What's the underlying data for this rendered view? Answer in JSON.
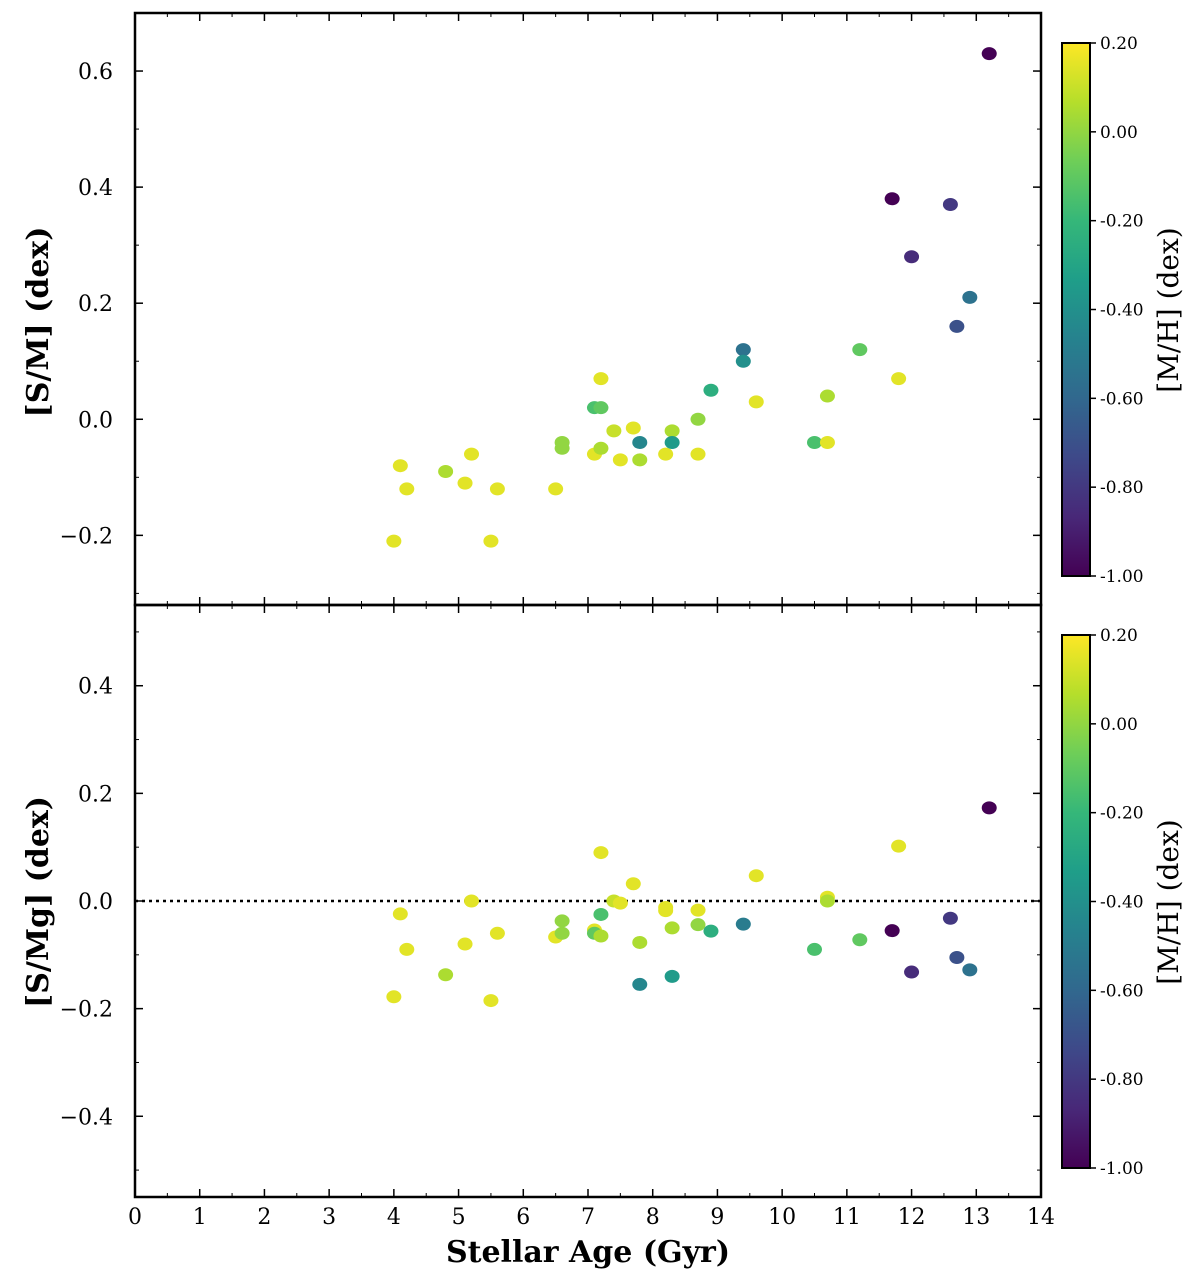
{
  "colors": {
    "viridis": [
      "#440154",
      "#482878",
      "#3e4989",
      "#31688e",
      "#26828e",
      "#1f9e89",
      "#35b779",
      "#6ece58",
      "#b5de2b",
      "#fde725"
    ],
    "zero_line": "#000000"
  },
  "chart_data": [
    {
      "type": "scatter",
      "panel": "top",
      "xlabel": "Stellar Age (Gyr)",
      "ylabel": "[S/M] (dex)",
      "xlim": [
        0,
        14
      ],
      "ylim": [
        -0.32,
        0.7
      ],
      "xticks": [
        0,
        1,
        2,
        3,
        4,
        5,
        6,
        7,
        8,
        9,
        10,
        11,
        12,
        13,
        14
      ],
      "xtick_labels": [
        "0",
        "1",
        "2",
        "3",
        "4",
        "5",
        "6",
        "7",
        "8",
        "9",
        "10",
        "11",
        "12",
        "13",
        "14"
      ],
      "yticks": [
        -0.2,
        0.0,
        0.2,
        0.4,
        0.6
      ],
      "ytick_labels": [
        "−0.2",
        "0.0",
        "0.2",
        "0.4",
        "0.6"
      ],
      "colorbar": {
        "label": "[M/H] (dex)",
        "range": [
          -1.0,
          0.2
        ],
        "ticks": [
          0.2,
          0.0,
          -0.2,
          -0.4,
          -0.6,
          -0.8,
          -1.0
        ],
        "tick_labels": [
          "0.20",
          "0.00",
          "-0.20",
          "-0.40",
          "-0.60",
          "-0.80",
          "-1.00"
        ]
      },
      "reference_line": null,
      "points": [
        {
          "x": 4.0,
          "y": -0.21,
          "c": 0.15
        },
        {
          "x": 4.1,
          "y": -0.08,
          "c": 0.15
        },
        {
          "x": 4.2,
          "y": -0.12,
          "c": 0.15
        },
        {
          "x": 4.8,
          "y": -0.09,
          "c": 0.05
        },
        {
          "x": 5.1,
          "y": -0.11,
          "c": 0.15
        },
        {
          "x": 5.2,
          "y": -0.06,
          "c": 0.15
        },
        {
          "x": 5.5,
          "y": -0.21,
          "c": 0.15
        },
        {
          "x": 5.6,
          "y": -0.12,
          "c": 0.15
        },
        {
          "x": 6.5,
          "y": -0.12,
          "c": 0.15
        },
        {
          "x": 6.6,
          "y": -0.04,
          "c": 0.0
        },
        {
          "x": 6.6,
          "y": -0.05,
          "c": 0.0
        },
        {
          "x": 7.1,
          "y": 0.02,
          "c": -0.15
        },
        {
          "x": 7.1,
          "y": -0.06,
          "c": 0.15
        },
        {
          "x": 7.2,
          "y": 0.02,
          "c": -0.1
        },
        {
          "x": 7.2,
          "y": -0.05,
          "c": 0.05
        },
        {
          "x": 7.2,
          "y": 0.07,
          "c": 0.15
        },
        {
          "x": 7.4,
          "y": -0.02,
          "c": 0.1
        },
        {
          "x": 7.5,
          "y": -0.07,
          "c": 0.15
        },
        {
          "x": 7.7,
          "y": -0.015,
          "c": 0.15
        },
        {
          "x": 7.8,
          "y": -0.04,
          "c": -0.45
        },
        {
          "x": 7.8,
          "y": -0.07,
          "c": 0.05
        },
        {
          "x": 8.2,
          "y": -0.06,
          "c": 0.15
        },
        {
          "x": 8.3,
          "y": -0.02,
          "c": 0.05
        },
        {
          "x": 8.3,
          "y": -0.04,
          "c": -0.35
        },
        {
          "x": 8.7,
          "y": 0.0,
          "c": 0.0
        },
        {
          "x": 8.7,
          "y": -0.06,
          "c": 0.15
        },
        {
          "x": 8.9,
          "y": 0.05,
          "c": -0.25
        },
        {
          "x": 9.4,
          "y": 0.12,
          "c": -0.55
        },
        {
          "x": 9.4,
          "y": 0.1,
          "c": -0.4
        },
        {
          "x": 9.6,
          "y": 0.03,
          "c": 0.15
        },
        {
          "x": 10.5,
          "y": -0.04,
          "c": -0.15
        },
        {
          "x": 10.7,
          "y": 0.04,
          "c": 0.05
        },
        {
          "x": 10.7,
          "y": -0.04,
          "c": 0.15
        },
        {
          "x": 11.2,
          "y": 0.12,
          "c": -0.1
        },
        {
          "x": 11.7,
          "y": 0.38,
          "c": -1.0
        },
        {
          "x": 11.8,
          "y": 0.07,
          "c": 0.15
        },
        {
          "x": 12.0,
          "y": 0.28,
          "c": -0.85
        },
        {
          "x": 12.6,
          "y": 0.37,
          "c": -0.8
        },
        {
          "x": 12.7,
          "y": 0.16,
          "c": -0.7
        },
        {
          "x": 12.9,
          "y": 0.21,
          "c": -0.55
        },
        {
          "x": 13.2,
          "y": 0.63,
          "c": -1.0
        }
      ]
    },
    {
      "type": "scatter",
      "panel": "bottom",
      "xlabel": "Stellar Age (Gyr)",
      "ylabel": "[S/Mg] (dex)",
      "xlim": [
        0,
        14
      ],
      "ylim": [
        -0.55,
        0.55
      ],
      "xticks": [
        0,
        1,
        2,
        3,
        4,
        5,
        6,
        7,
        8,
        9,
        10,
        11,
        12,
        13,
        14
      ],
      "xtick_labels": [
        "0",
        "1",
        "2",
        "3",
        "4",
        "5",
        "6",
        "7",
        "8",
        "9",
        "10",
        "11",
        "12",
        "13",
        "14"
      ],
      "yticks": [
        -0.4,
        -0.2,
        0.0,
        0.2,
        0.4
      ],
      "ytick_labels": [
        "−0.4",
        "−0.2",
        "0.0",
        "0.2",
        "0.4"
      ],
      "colorbar": {
        "label": "[M/H] (dex)",
        "range": [
          -1.0,
          0.2
        ],
        "ticks": [
          0.2,
          0.0,
          -0.2,
          -0.4,
          -0.6,
          -0.8,
          -1.0
        ],
        "tick_labels": [
          "0.20",
          "0.00",
          "-0.20",
          "-0.40",
          "-0.60",
          "-0.80",
          "-1.00"
        ]
      },
      "reference_line": {
        "y": 0.0,
        "style": "dotted"
      },
      "points": [
        {
          "x": 4.0,
          "y": -0.178,
          "c": 0.15
        },
        {
          "x": 4.1,
          "y": -0.024,
          "c": 0.15
        },
        {
          "x": 4.2,
          "y": -0.09,
          "c": 0.15
        },
        {
          "x": 4.8,
          "y": -0.137,
          "c": 0.05
        },
        {
          "x": 5.1,
          "y": -0.08,
          "c": 0.15
        },
        {
          "x": 5.2,
          "y": 0.0,
          "c": 0.15
        },
        {
          "x": 5.5,
          "y": -0.185,
          "c": 0.15
        },
        {
          "x": 5.6,
          "y": -0.06,
          "c": 0.15
        },
        {
          "x": 6.5,
          "y": -0.067,
          "c": 0.15
        },
        {
          "x": 6.6,
          "y": -0.037,
          "c": 0.0
        },
        {
          "x": 6.6,
          "y": -0.06,
          "c": 0.0
        },
        {
          "x": 7.1,
          "y": -0.054,
          "c": 0.15
        },
        {
          "x": 7.1,
          "y": -0.06,
          "c": -0.1
        },
        {
          "x": 7.2,
          "y": -0.025,
          "c": -0.15
        },
        {
          "x": 7.2,
          "y": -0.065,
          "c": 0.05
        },
        {
          "x": 7.2,
          "y": 0.09,
          "c": 0.15
        },
        {
          "x": 7.4,
          "y": 0.0,
          "c": 0.1
        },
        {
          "x": 7.5,
          "y": -0.004,
          "c": 0.15
        },
        {
          "x": 7.7,
          "y": 0.032,
          "c": 0.15
        },
        {
          "x": 7.8,
          "y": -0.077,
          "c": 0.05
        },
        {
          "x": 7.8,
          "y": -0.155,
          "c": -0.45
        },
        {
          "x": 8.2,
          "y": -0.012,
          "c": 0.15
        },
        {
          "x": 8.2,
          "y": -0.018,
          "c": 0.15
        },
        {
          "x": 8.3,
          "y": -0.05,
          "c": 0.05
        },
        {
          "x": 8.3,
          "y": -0.14,
          "c": -0.35
        },
        {
          "x": 8.7,
          "y": -0.017,
          "c": 0.15
        },
        {
          "x": 8.7,
          "y": -0.044,
          "c": 0.0
        },
        {
          "x": 8.9,
          "y": -0.056,
          "c": -0.25
        },
        {
          "x": 9.4,
          "y": -0.043,
          "c": -0.5
        },
        {
          "x": 9.6,
          "y": 0.047,
          "c": 0.15
        },
        {
          "x": 10.5,
          "y": -0.09,
          "c": -0.15
        },
        {
          "x": 10.7,
          "y": 0.007,
          "c": 0.15
        },
        {
          "x": 10.7,
          "y": 0.0,
          "c": 0.05
        },
        {
          "x": 11.2,
          "y": -0.072,
          "c": -0.1
        },
        {
          "x": 11.7,
          "y": -0.055,
          "c": -1.0
        },
        {
          "x": 11.8,
          "y": 0.102,
          "c": 0.15
        },
        {
          "x": 12.0,
          "y": -0.132,
          "c": -0.85
        },
        {
          "x": 12.6,
          "y": -0.032,
          "c": -0.8
        },
        {
          "x": 12.7,
          "y": -0.105,
          "c": -0.7
        },
        {
          "x": 12.9,
          "y": -0.128,
          "c": -0.55
        },
        {
          "x": 13.2,
          "y": 0.173,
          "c": -1.0
        }
      ]
    }
  ]
}
